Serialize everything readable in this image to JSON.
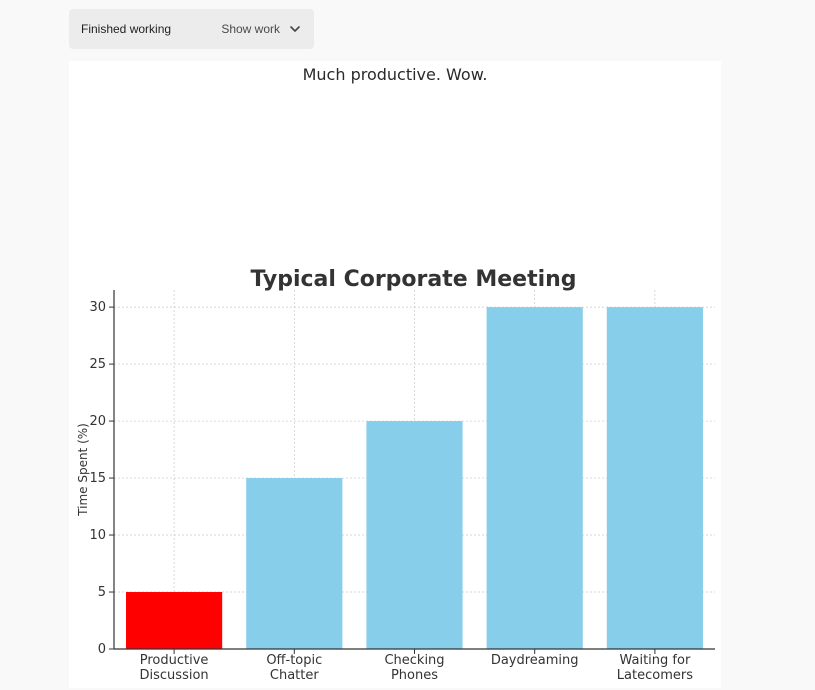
{
  "status": {
    "label": "Finished working",
    "show_work_label": "Show work",
    "chevron_icon": "chevron-down-icon"
  },
  "chart_caption": "Much productive. Wow.",
  "chart_data": {
    "type": "bar",
    "title": "Typical Corporate Meeting",
    "xlabel": "",
    "ylabel": "Time Spent (%)",
    "categories": [
      [
        "Productive",
        "Discussion"
      ],
      [
        "Off-topic",
        "Chatter"
      ],
      [
        "Checking",
        "Phones"
      ],
      [
        "Daydreaming"
      ],
      [
        "Waiting for",
        "Latecomers"
      ]
    ],
    "values": [
      5,
      15,
      20,
      30,
      30
    ],
    "colors": [
      "#ff0000",
      "#87ceeb",
      "#87ceeb",
      "#87ceeb",
      "#87ceeb"
    ],
    "ylim": [
      0,
      31.5
    ],
    "yticks": [
      0,
      5,
      10,
      15,
      20,
      25,
      30
    ],
    "grid": true,
    "legend": "none"
  }
}
